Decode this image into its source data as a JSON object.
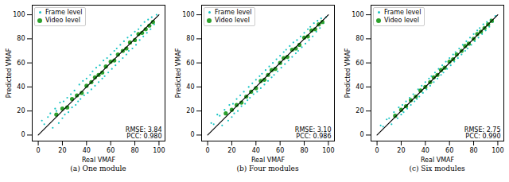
{
  "chart_data": [
    {
      "type": "scatter",
      "title": "(a) One module",
      "x_label": "Real VMAF",
      "y_label": "Predicted VMAF",
      "xlim": [
        -5,
        105
      ],
      "ylim": [
        -5,
        108
      ],
      "xticks": [
        0,
        20,
        40,
        60,
        80,
        100
      ],
      "yticks": [
        0,
        20,
        40,
        60,
        80,
        100
      ],
      "grid": false,
      "legend": "upper left",
      "annotations": [
        "RMSE: 3.84",
        "PCC: 0.980"
      ],
      "reference_line": {
        "x": [
          0,
          100
        ],
        "y": [
          0,
          100
        ],
        "color": "#000000"
      },
      "series": [
        {
          "name": "Frame level",
          "color": "#17c4c4",
          "marker": "point",
          "x": [
            3,
            5,
            8,
            10,
            12,
            14,
            15,
            17,
            18,
            20,
            21,
            22,
            24,
            25,
            27,
            28,
            30,
            31,
            33,
            34,
            35,
            37,
            38,
            40,
            41,
            43,
            44,
            45,
            47,
            48,
            50,
            51,
            53,
            54,
            55,
            57,
            58,
            60,
            61,
            63,
            64,
            65,
            67,
            68,
            70,
            71,
            73,
            74,
            75,
            77,
            78,
            80,
            81,
            83,
            84,
            85,
            87,
            88,
            90,
            91,
            93,
            94,
            96,
            98
          ],
          "values": [
            12,
            9,
            15,
            18,
            6,
            22,
            20,
            10,
            27,
            14,
            28,
            17,
            31,
            19,
            34,
            23,
            37,
            25,
            28,
            42,
            30,
            45,
            33,
            47,
            35,
            50,
            38,
            53,
            41,
            56,
            44,
            58,
            47,
            62,
            49,
            64,
            52,
            67,
            55,
            70,
            58,
            72,
            61,
            75,
            64,
            78,
            67,
            81,
            70,
            83,
            72,
            86,
            75,
            88,
            79,
            91,
            82,
            94,
            85,
            96,
            88,
            98,
            92,
            100
          ]
        },
        {
          "name": "Video level",
          "color": "#2ca02c",
          "marker": "circle",
          "x": [
            15,
            20,
            24,
            28,
            32,
            36,
            40,
            44,
            47,
            50,
            53,
            56,
            60,
            63,
            66,
            70,
            73,
            76,
            80,
            83,
            86,
            89,
            92,
            95
          ],
          "values": [
            17,
            22,
            23,
            30,
            33,
            35,
            41,
            44,
            48,
            50,
            52,
            57,
            61,
            62,
            67,
            70,
            72,
            77,
            79,
            84,
            85,
            88,
            91,
            94
          ]
        }
      ]
    },
    {
      "type": "scatter",
      "title": "(b) Four modules",
      "x_label": "Real VMAF",
      "y_label": "Predicted VMAF",
      "xlim": [
        -5,
        105
      ],
      "ylim": [
        -5,
        108
      ],
      "xticks": [
        0,
        20,
        40,
        60,
        80,
        100
      ],
      "yticks": [
        0,
        20,
        40,
        60,
        80,
        100
      ],
      "grid": false,
      "legend": "upper left",
      "annotations": [
        "RMSE: 3.10",
        "PCC: 0.986"
      ],
      "reference_line": {
        "x": [
          0,
          100
        ],
        "y": [
          0,
          100
        ],
        "color": "#000000"
      },
      "series": [
        {
          "name": "Frame level",
          "color": "#17c4c4",
          "marker": "point",
          "x": [
            3,
            5,
            8,
            10,
            12,
            14,
            15,
            17,
            18,
            20,
            21,
            22,
            24,
            25,
            27,
            28,
            30,
            31,
            33,
            34,
            35,
            37,
            38,
            40,
            41,
            43,
            44,
            45,
            47,
            48,
            50,
            51,
            53,
            54,
            55,
            57,
            58,
            60,
            61,
            63,
            64,
            65,
            67,
            68,
            70,
            71,
            73,
            74,
            75,
            77,
            78,
            80,
            81,
            83,
            84,
            85,
            87,
            88,
            90,
            91,
            93,
            94,
            96,
            98
          ],
          "values": [
            10,
            9,
            17,
            16,
            8,
            21,
            19,
            12,
            25,
            15,
            26,
            18,
            30,
            20,
            33,
            24,
            36,
            26,
            29,
            40,
            31,
            43,
            34,
            46,
            36,
            49,
            39,
            51,
            42,
            54,
            45,
            57,
            48,
            60,
            50,
            63,
            53,
            66,
            56,
            69,
            59,
            71,
            62,
            74,
            65,
            77,
            68,
            79,
            70,
            82,
            73,
            85,
            76,
            88,
            79,
            90,
            82,
            93,
            86,
            95,
            89,
            97,
            93,
            98
          ]
        },
        {
          "name": "Video level",
          "color": "#2ca02c",
          "marker": "circle",
          "x": [
            15,
            20,
            24,
            28,
            32,
            36,
            40,
            44,
            47,
            50,
            53,
            56,
            60,
            63,
            66,
            70,
            73,
            76,
            80,
            83,
            86,
            89,
            92,
            95
          ],
          "values": [
            18,
            21,
            25,
            27,
            32,
            36,
            39,
            45,
            46,
            50,
            54,
            55,
            60,
            64,
            65,
            71,
            72,
            75,
            81,
            82,
            87,
            88,
            92,
            94
          ]
        }
      ]
    },
    {
      "type": "scatter",
      "title": "(c) Six modules",
      "x_label": "Real VMAF",
      "y_label": "Predicted VMAF",
      "xlim": [
        -5,
        105
      ],
      "ylim": [
        -5,
        108
      ],
      "xticks": [
        0,
        20,
        40,
        60,
        80,
        100
      ],
      "yticks": [
        0,
        20,
        40,
        60,
        80,
        100
      ],
      "grid": false,
      "legend": "upper left",
      "annotations": [
        "RMSE: 2.75",
        "PCC: 0.990"
      ],
      "reference_line": {
        "x": [
          0,
          100
        ],
        "y": [
          0,
          100
        ],
        "color": "#000000"
      },
      "series": [
        {
          "name": "Frame level",
          "color": "#17c4c4",
          "marker": "point",
          "x": [
            3,
            5,
            8,
            10,
            12,
            14,
            15,
            17,
            18,
            20,
            21,
            22,
            24,
            25,
            27,
            28,
            30,
            31,
            33,
            34,
            35,
            37,
            38,
            40,
            41,
            43,
            44,
            45,
            47,
            48,
            50,
            51,
            53,
            54,
            55,
            57,
            58,
            60,
            61,
            63,
            64,
            65,
            67,
            68,
            70,
            71,
            73,
            74,
            75,
            77,
            78,
            80,
            81,
            83,
            84,
            85,
            87,
            88,
            90,
            91,
            93,
            94,
            96,
            98
          ],
          "values": [
            8,
            7,
            13,
            14,
            9,
            19,
            17,
            14,
            23,
            17,
            25,
            19,
            28,
            22,
            31,
            25,
            34,
            28,
            30,
            38,
            32,
            41,
            35,
            44,
            38,
            47,
            41,
            49,
            44,
            52,
            47,
            55,
            50,
            58,
            52,
            61,
            55,
            64,
            58,
            67,
            61,
            69,
            64,
            72,
            67,
            75,
            70,
            78,
            72,
            81,
            75,
            84,
            78,
            87,
            81,
            89,
            84,
            92,
            87,
            94,
            90,
            96,
            94,
            99
          ]
        },
        {
          "name": "Video level",
          "color": "#2ca02c",
          "marker": "circle",
          "x": [
            15,
            20,
            24,
            28,
            32,
            36,
            40,
            44,
            47,
            50,
            53,
            56,
            60,
            63,
            66,
            70,
            73,
            76,
            80,
            83,
            86,
            89,
            92,
            95
          ],
          "values": [
            16,
            21,
            24,
            29,
            32,
            37,
            40,
            44,
            48,
            50,
            54,
            56,
            61,
            63,
            67,
            70,
            74,
            76,
            80,
            84,
            86,
            89,
            92,
            95
          ]
        }
      ]
    }
  ]
}
